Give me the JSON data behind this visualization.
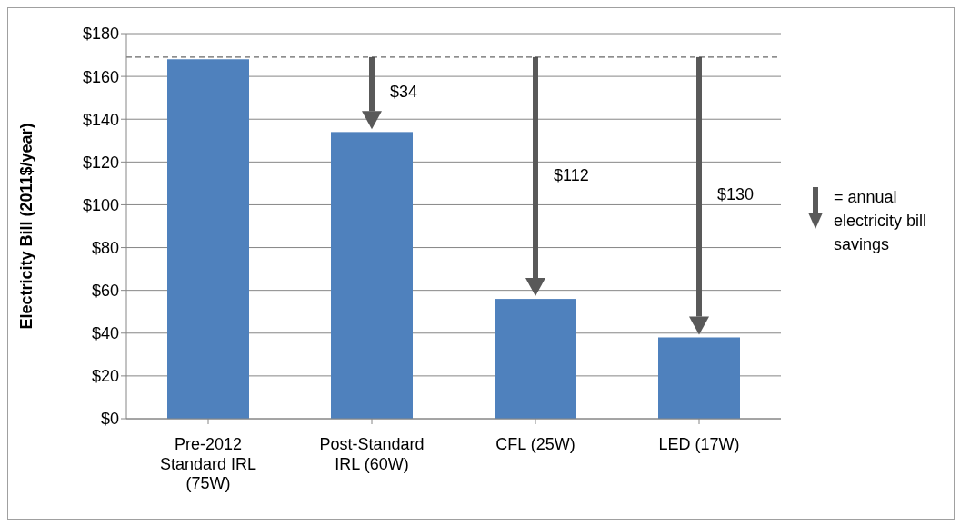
{
  "chart_data": {
    "type": "bar",
    "ylabel": "Electricity Bill (2011$/year)",
    "categories": [
      "Pre-2012 Standard IRL (75W)",
      "Post-Standard IRL (60W)",
      "CFL (25W)",
      "LED (17W)"
    ],
    "values": [
      168,
      134,
      56,
      38
    ],
    "color": "#4f81bd",
    "ylim": [
      0,
      180
    ],
    "yticks": [
      {
        "value": 0,
        "label": "$0"
      },
      {
        "value": 20,
        "label": "$20"
      },
      {
        "value": 40,
        "label": "$40"
      },
      {
        "value": 60,
        "label": "$60"
      },
      {
        "value": 80,
        "label": "$80"
      },
      {
        "value": 100,
        "label": "$100"
      },
      {
        "value": 120,
        "label": "$120"
      },
      {
        "value": 140,
        "label": "$140"
      },
      {
        "value": 160,
        "label": "$160"
      },
      {
        "value": 180,
        "label": "$180"
      }
    ],
    "grid": "y",
    "ref_lines": [
      {
        "axis": "y",
        "value": 169,
        "color": "#404040",
        "line_style": "dashed"
      }
    ],
    "annotations": [
      "$34",
      "$112",
      "$130",
      "= annual electricity bill savings"
    ]
  }
}
